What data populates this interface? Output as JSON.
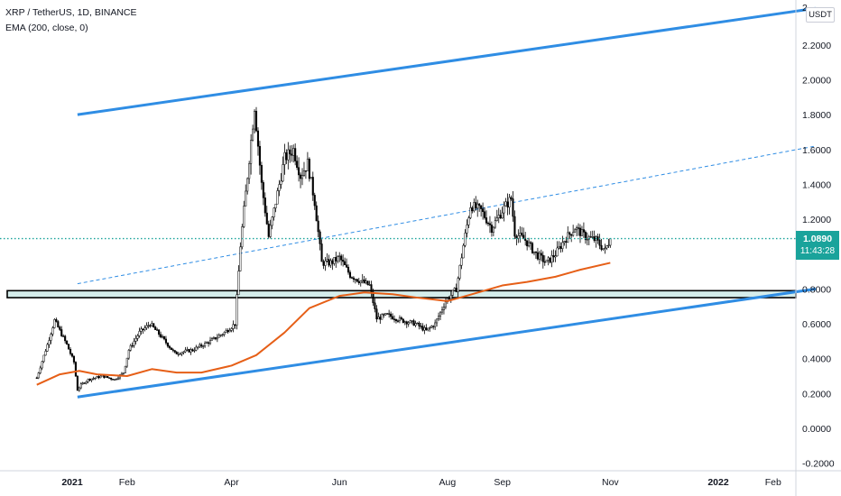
{
  "legend": {
    "title": "XRP / TetherUS, 1D, BINANCE",
    "indicator": "EMA (200, close, 0)"
  },
  "currency_badge": "USDT",
  "last_price": {
    "price": "1.0890",
    "countdown": "11:43:28"
  },
  "chart_data": {
    "type": "candlestick",
    "symbol": "XRP / TetherUS",
    "interval": "1D",
    "exchange": "BINANCE",
    "y_axis_labels": [
      "2",
      "2.2000",
      "2.0000",
      "1.8000",
      "1.6000",
      "1.4000",
      "1.2000",
      "1.0000",
      "0.8000",
      "0.6000",
      "0.4000",
      "0.2000",
      "0.0000",
      "-0.2000"
    ],
    "x_axis_labels": [
      "2021",
      "Feb",
      "Apr",
      "Jun",
      "Aug",
      "Sep",
      "Nov",
      "2022",
      "Feb"
    ],
    "ylim": [
      -0.2,
      2.4
    ],
    "grid": false,
    "price_path": [
      [
        "2020-12-12",
        0.29
      ],
      [
        "2020-12-18",
        0.48
      ],
      [
        "2020-12-22",
        0.62
      ],
      [
        "2020-12-24",
        0.58
      ],
      [
        "2020-12-29",
        0.48
      ],
      [
        "2021-01-02",
        0.38
      ],
      [
        "2021-01-04",
        0.22
      ],
      [
        "2021-01-06",
        0.25
      ],
      [
        "2021-01-10",
        0.28
      ],
      [
        "2021-01-18",
        0.3
      ],
      [
        "2021-01-25",
        0.28
      ],
      [
        "2021-01-30",
        0.32
      ],
      [
        "2021-02-02",
        0.45
      ],
      [
        "2021-02-08",
        0.55
      ],
      [
        "2021-02-14",
        0.6
      ],
      [
        "2021-02-20",
        0.53
      ],
      [
        "2021-02-28",
        0.43
      ],
      [
        "2021-03-10",
        0.45
      ],
      [
        "2021-03-20",
        0.5
      ],
      [
        "2021-03-28",
        0.55
      ],
      [
        "2021-04-03",
        0.6
      ],
      [
        "2021-04-06",
        1.05
      ],
      [
        "2021-04-10",
        1.45
      ],
      [
        "2021-04-14",
        1.85
      ],
      [
        "2021-04-18",
        1.4
      ],
      [
        "2021-04-22",
        1.1
      ],
      [
        "2021-04-26",
        1.3
      ],
      [
        "2021-05-01",
        1.55
      ],
      [
        "2021-05-06",
        1.6
      ],
      [
        "2021-05-10",
        1.45
      ],
      [
        "2021-05-14",
        1.52
      ],
      [
        "2021-05-18",
        1.3
      ],
      [
        "2021-05-22",
        0.95
      ],
      [
        "2021-05-27",
        0.95
      ],
      [
        "2021-06-01",
        0.98
      ],
      [
        "2021-06-07",
        0.88
      ],
      [
        "2021-06-12",
        0.85
      ],
      [
        "2021-06-18",
        0.82
      ],
      [
        "2021-06-22",
        0.63
      ],
      [
        "2021-06-28",
        0.65
      ],
      [
        "2021-07-06",
        0.62
      ],
      [
        "2021-07-14",
        0.6
      ],
      [
        "2021-07-20",
        0.56
      ],
      [
        "2021-07-25",
        0.6
      ],
      [
        "2021-07-31",
        0.73
      ],
      [
        "2021-08-06",
        0.8
      ],
      [
        "2021-08-10",
        1.05
      ],
      [
        "2021-08-14",
        1.28
      ],
      [
        "2021-08-20",
        1.25
      ],
      [
        "2021-08-26",
        1.15
      ],
      [
        "2021-09-01",
        1.25
      ],
      [
        "2021-09-06",
        1.32
      ],
      [
        "2021-09-08",
        1.12
      ],
      [
        "2021-09-14",
        1.08
      ],
      [
        "2021-09-20",
        1.0
      ],
      [
        "2021-09-26",
        0.95
      ],
      [
        "2021-10-01",
        1.0
      ],
      [
        "2021-10-06",
        1.08
      ],
      [
        "2021-10-12",
        1.15
      ],
      [
        "2021-10-18",
        1.1
      ],
      [
        "2021-10-24",
        1.08
      ],
      [
        "2021-10-29",
        1.02
      ],
      [
        "2021-11-01",
        1.089
      ]
    ],
    "series": [
      {
        "name": "EMA (200, close, 0)",
        "color": "#e65f17",
        "points": [
          [
            "2020-12-12",
            0.25
          ],
          [
            "2020-12-25",
            0.31
          ],
          [
            "2021-01-05",
            0.33
          ],
          [
            "2021-01-15",
            0.31
          ],
          [
            "2021-02-01",
            0.3
          ],
          [
            "2021-02-15",
            0.34
          ],
          [
            "2021-03-01",
            0.32
          ],
          [
            "2021-03-15",
            0.32
          ],
          [
            "2021-04-01",
            0.36
          ],
          [
            "2021-04-15",
            0.42
          ],
          [
            "2021-05-01",
            0.55
          ],
          [
            "2021-05-15",
            0.69
          ],
          [
            "2021-06-01",
            0.76
          ],
          [
            "2021-06-15",
            0.78
          ],
          [
            "2021-07-01",
            0.77
          ],
          [
            "2021-07-15",
            0.75
          ],
          [
            "2021-08-01",
            0.73
          ],
          [
            "2021-08-15",
            0.77
          ],
          [
            "2021-09-01",
            0.82
          ],
          [
            "2021-09-15",
            0.84
          ],
          [
            "2021-10-01",
            0.87
          ],
          [
            "2021-10-15",
            0.91
          ],
          [
            "2021-11-01",
            0.95
          ]
        ]
      }
    ],
    "annotations": {
      "upper_channel": {
        "color": "#2f8de4",
        "points": [
          [
            "2021-01-04",
            1.8
          ],
          [
            "2022-02-25",
            2.41
          ]
        ]
      },
      "lower_channel": {
        "color": "#2f8de4",
        "points": [
          [
            "2021-01-04",
            0.18
          ],
          [
            "2022-02-25",
            0.8
          ]
        ]
      },
      "mid_channel_dashed": {
        "color": "#2f8de4",
        "points": [
          [
            "2021-01-04",
            0.83
          ],
          [
            "2022-02-25",
            1.62
          ]
        ]
      },
      "support_zone": {
        "color": "#b2dfdb",
        "range": [
          0.75,
          0.79
        ]
      },
      "last_price_line": {
        "color": "#1aa39b",
        "value": 1.089
      }
    }
  }
}
